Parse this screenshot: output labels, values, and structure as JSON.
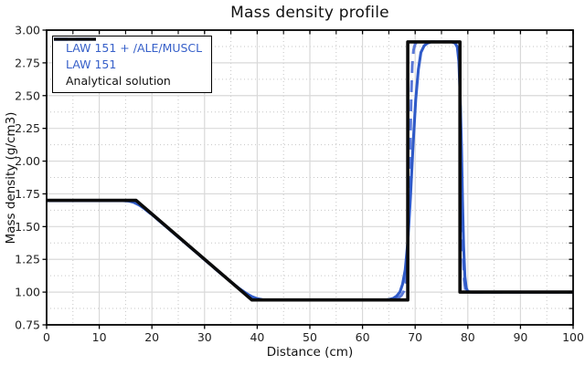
{
  "chart_data": {
    "type": "line",
    "title": "Mass density profile",
    "xlabel": "Distance (cm)",
    "ylabel": "Mass density (g/cm3)",
    "xlim": [
      0,
      100
    ],
    "ylim": [
      0.75,
      3.0
    ],
    "grid": {
      "major_color": "#d9d9d9",
      "minor_color": "#c6c6c6",
      "major_on": true,
      "minor_on": true
    },
    "frame_color": "#000000",
    "legend_position": "top-left",
    "x_ticks": {
      "values": [
        0,
        10,
        20,
        30,
        40,
        50,
        60,
        70,
        80,
        90,
        100
      ],
      "labels": [
        "0",
        "10",
        "20",
        "30",
        "40",
        "50",
        "60",
        "70",
        "80",
        "90",
        "100"
      ],
      "minor": [
        5,
        15,
        25,
        35,
        45,
        55,
        65,
        75,
        85,
        95
      ]
    },
    "y_ticks": {
      "values": [
        0.75,
        1.0,
        1.25,
        1.5,
        1.75,
        2.0,
        2.25,
        2.5,
        2.75,
        3.0
      ],
      "labels": [
        "0.75",
        "1.00",
        "1.25",
        "1.50",
        "1.75",
        "2.00",
        "2.25",
        "2.50",
        "2.75",
        "3.00"
      ],
      "minor": [
        0.875,
        1.125,
        1.375,
        1.625,
        1.875,
        2.125,
        2.375,
        2.625,
        2.875
      ]
    },
    "series": [
      {
        "name": "LAW 151 + /ALE/MUSCL",
        "color": "#5b79d8",
        "label_color": "#3760c9",
        "dash": "13 8",
        "width": 3,
        "points": [
          [
            0,
            1.699
          ],
          [
            15.2,
            1.699
          ],
          [
            16.2,
            1.694
          ],
          [
            17.2,
            1.675
          ],
          [
            18.2,
            1.648
          ],
          [
            20,
            1.59
          ],
          [
            23,
            1.49
          ],
          [
            26,
            1.385
          ],
          [
            29,
            1.282
          ],
          [
            32,
            1.178
          ],
          [
            34,
            1.11
          ],
          [
            36,
            1.045
          ],
          [
            37.5,
            1.0
          ],
          [
            38.5,
            0.975
          ],
          [
            39.5,
            0.954
          ],
          [
            40.5,
            0.944
          ],
          [
            41.5,
            0.939
          ],
          [
            65,
            0.939
          ],
          [
            66,
            0.945
          ],
          [
            66.8,
            0.955
          ],
          [
            67.4,
            0.975
          ],
          [
            67.9,
            1.01
          ],
          [
            68.2,
            1.07
          ],
          [
            68.45,
            1.18
          ],
          [
            68.65,
            1.38
          ],
          [
            68.85,
            1.72
          ],
          [
            69.05,
            2.12
          ],
          [
            69.25,
            2.5
          ],
          [
            69.45,
            2.73
          ],
          [
            69.7,
            2.85
          ],
          [
            70,
            2.895
          ],
          [
            70.5,
            2.91
          ],
          [
            77.3,
            2.91
          ],
          [
            77.9,
            2.9
          ],
          [
            78.25,
            2.85
          ],
          [
            78.5,
            2.6
          ],
          [
            78.7,
            2.15
          ],
          [
            78.9,
            1.65
          ],
          [
            79.1,
            1.28
          ],
          [
            79.3,
            1.09
          ],
          [
            79.55,
            1.02
          ],
          [
            79.9,
            1.0
          ],
          [
            100,
            1.0
          ]
        ]
      },
      {
        "name": "LAW 151",
        "color": "#2f5ac8",
        "label_color": "#3760c9",
        "dash": "",
        "width": 3.1,
        "points": [
          [
            0,
            1.698
          ],
          [
            14.5,
            1.698
          ],
          [
            15.5,
            1.695
          ],
          [
            16.5,
            1.686
          ],
          [
            17.5,
            1.666
          ],
          [
            18.5,
            1.64
          ],
          [
            20,
            1.592
          ],
          [
            22,
            1.523
          ],
          [
            25,
            1.42
          ],
          [
            28,
            1.317
          ],
          [
            31,
            1.213
          ],
          [
            33,
            1.145
          ],
          [
            35,
            1.078
          ],
          [
            36.5,
            1.03
          ],
          [
            38,
            0.988
          ],
          [
            39,
            0.965
          ],
          [
            40,
            0.95
          ],
          [
            41,
            0.942
          ],
          [
            42.5,
            0.938
          ],
          [
            64,
            0.938
          ],
          [
            65,
            0.944
          ],
          [
            65.8,
            0.952
          ],
          [
            66.5,
            0.97
          ],
          [
            67.1,
            1.0
          ],
          [
            67.6,
            1.06
          ],
          [
            68.1,
            1.17
          ],
          [
            68.6,
            1.38
          ],
          [
            69.1,
            1.72
          ],
          [
            69.6,
            2.12
          ],
          [
            70.1,
            2.47
          ],
          [
            70.6,
            2.7
          ],
          [
            71.1,
            2.83
          ],
          [
            71.7,
            2.88
          ],
          [
            72.3,
            2.9
          ],
          [
            73,
            2.91
          ],
          [
            77,
            2.91
          ],
          [
            77.6,
            2.9
          ],
          [
            78,
            2.87
          ],
          [
            78.3,
            2.76
          ],
          [
            78.55,
            2.5
          ],
          [
            78.8,
            2.1
          ],
          [
            79,
            1.7
          ],
          [
            79.2,
            1.35
          ],
          [
            79.45,
            1.12
          ],
          [
            79.7,
            1.03
          ],
          [
            80,
            1.005
          ],
          [
            80.5,
            1.0
          ],
          [
            100,
            1.0
          ]
        ]
      },
      {
        "name": "Analytical solution",
        "color": "#0b0b0b",
        "label_color": "#111111",
        "dash": "",
        "width": 3.6,
        "points": [
          [
            0,
            1.7
          ],
          [
            17,
            1.7
          ],
          [
            39,
            0.94
          ],
          [
            68.6,
            0.94
          ],
          [
            68.6,
            2.91
          ],
          [
            78.5,
            2.91
          ],
          [
            78.5,
            1.0
          ],
          [
            100,
            1.0
          ]
        ]
      }
    ]
  }
}
